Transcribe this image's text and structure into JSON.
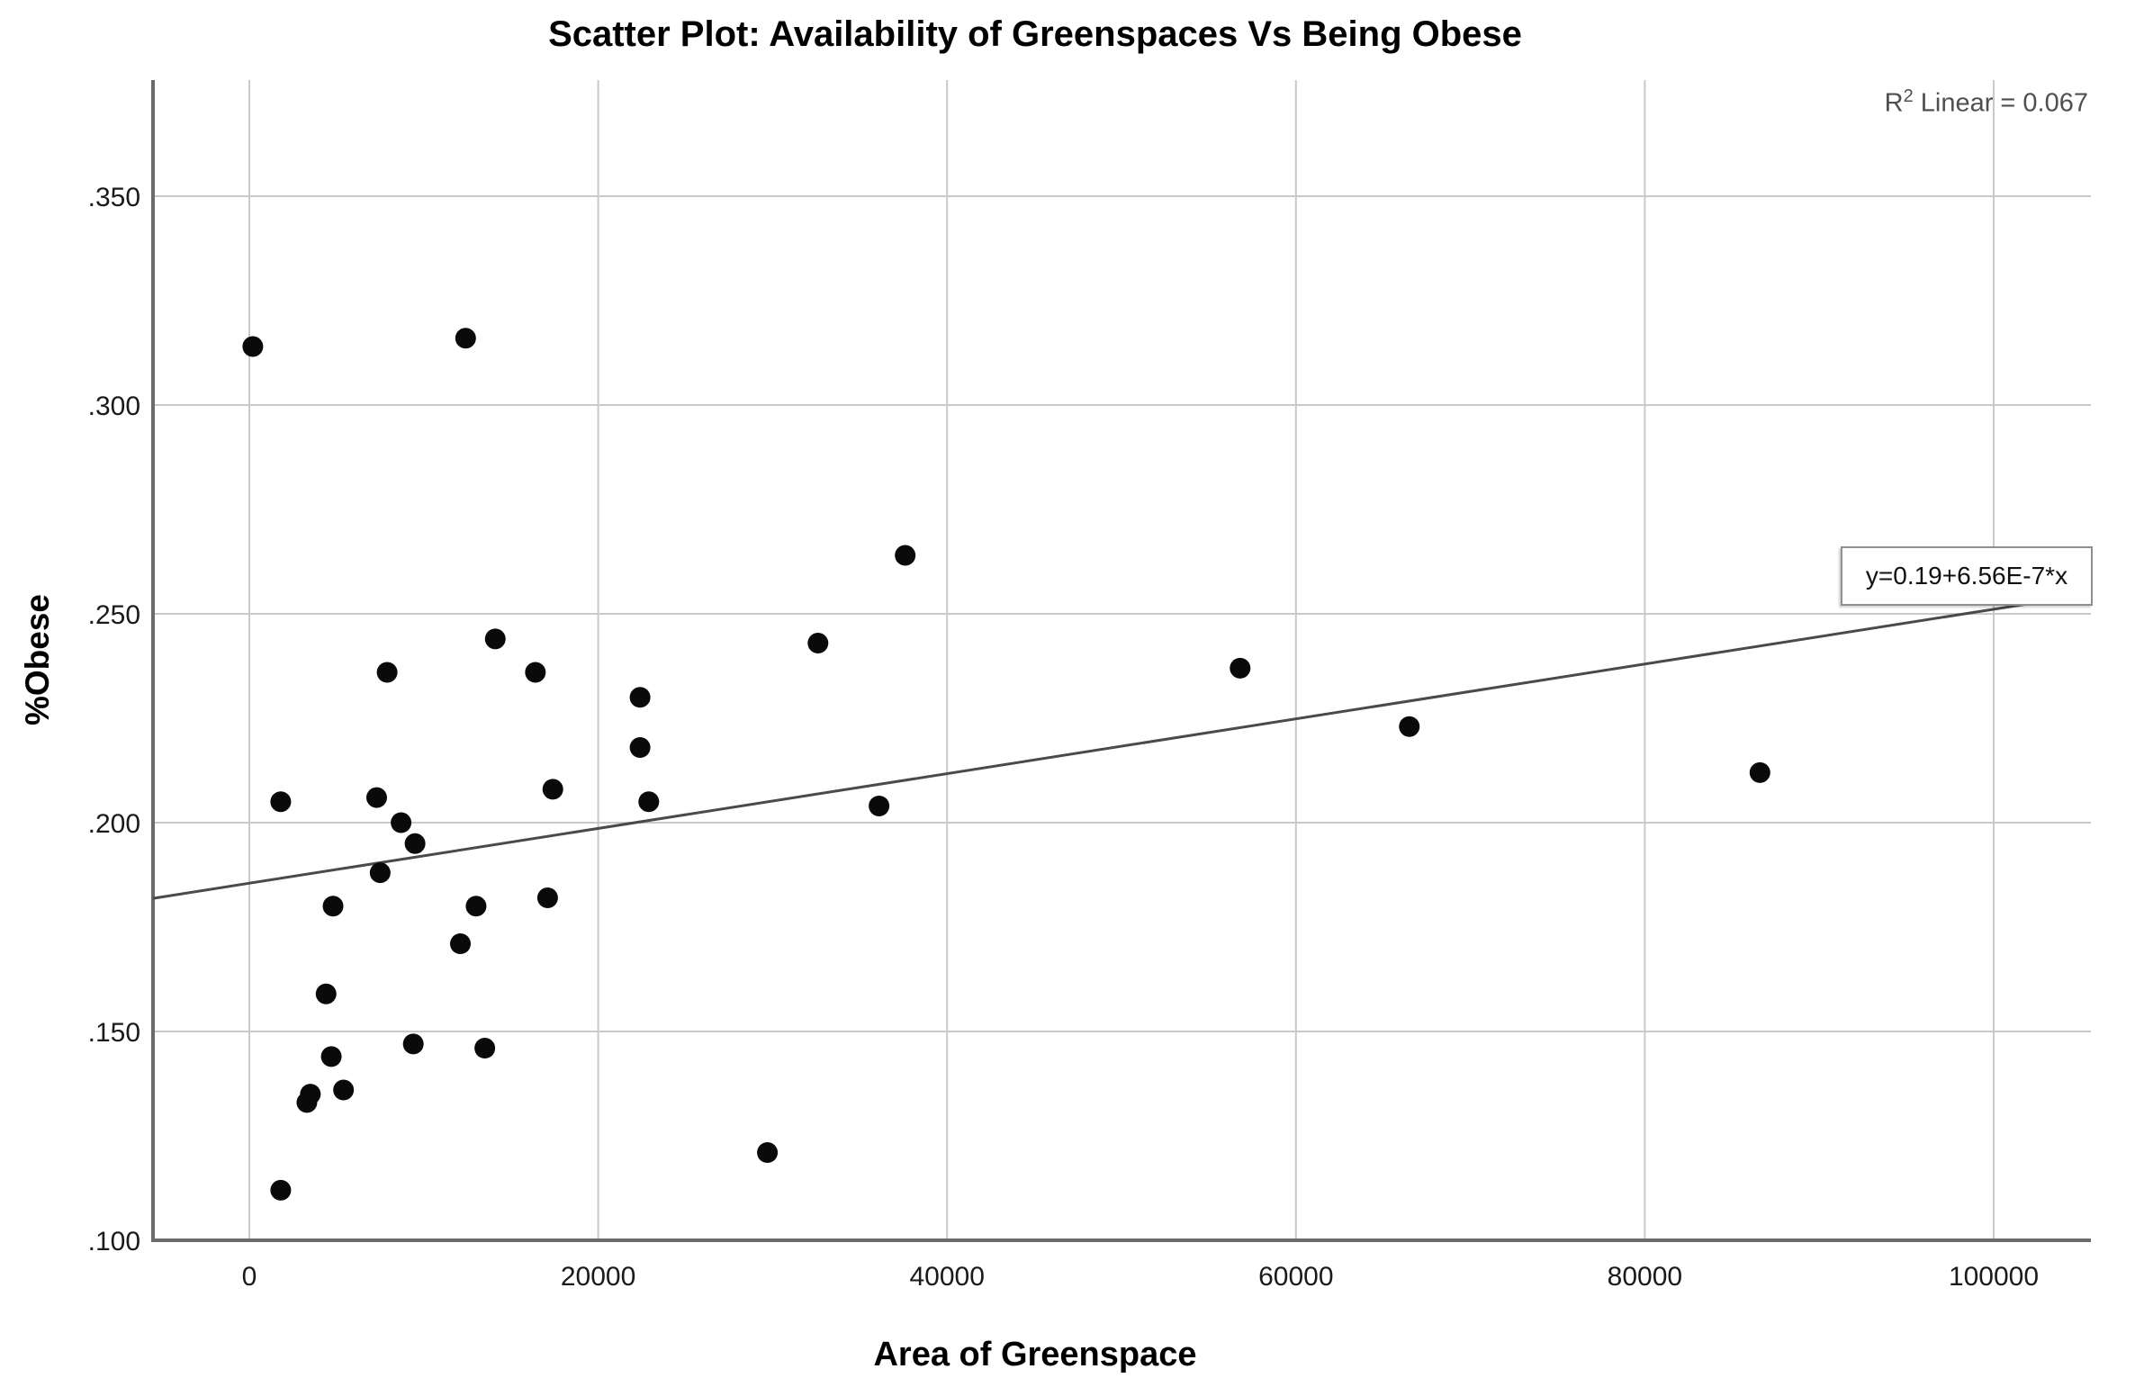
{
  "title": "Scatter Plot: Availability of Greenspaces Vs Being Obese",
  "annotations": {
    "r2_prefix": "R",
    "r2_sup": "2",
    "r2_suffix": " Linear = 0.067",
    "equation_label": "y=0.19+6.56E-7*x"
  },
  "chart_data": {
    "type": "scatter",
    "title": "Scatter Plot: Availability of Greenspaces Vs Being Obese",
    "xlabel": "Area of Greenspace",
    "ylabel": "%Obese",
    "r_squared": 0.067,
    "fit_line": {
      "slope": 6.56e-07,
      "intercept_label": "0.19",
      "intercept_drawn": 0.1855
    },
    "grid": true,
    "xlim": [
      -5522,
      105600
    ],
    "ylim": [
      0.1,
      0.3778
    ],
    "x_ticks": [
      {
        "value": 0,
        "label": "0"
      },
      {
        "value": 20000,
        "label": "20000"
      },
      {
        "value": 40000,
        "label": "40000"
      },
      {
        "value": 60000,
        "label": "60000"
      },
      {
        "value": 80000,
        "label": "80000"
      },
      {
        "value": 100000,
        "label": "100000"
      }
    ],
    "y_ticks": [
      {
        "value": 0.1,
        "label": ".100"
      },
      {
        "value": 0.15,
        "label": ".150"
      },
      {
        "value": 0.2,
        "label": ".200"
      },
      {
        "value": 0.25,
        "label": ".250"
      },
      {
        "value": 0.3,
        "label": ".300"
      },
      {
        "value": 0.35,
        "label": ".350"
      }
    ],
    "points": [
      [
        200,
        0.314
      ],
      [
        12400,
        0.316
      ],
      [
        14100,
        0.244
      ],
      [
        7900,
        0.236
      ],
      [
        16400,
        0.236
      ],
      [
        22400,
        0.23
      ],
      [
        22400,
        0.218
      ],
      [
        17400,
        0.208
      ],
      [
        22900,
        0.205
      ],
      [
        1800,
        0.205
      ],
      [
        7300,
        0.206
      ],
      [
        8700,
        0.2
      ],
      [
        9500,
        0.195
      ],
      [
        7500,
        0.188
      ],
      [
        4800,
        0.18
      ],
      [
        13000,
        0.18
      ],
      [
        17100,
        0.182
      ],
      [
        12100,
        0.171
      ],
      [
        4400,
        0.159
      ],
      [
        9400,
        0.147
      ],
      [
        13500,
        0.146
      ],
      [
        4700,
        0.144
      ],
      [
        5400,
        0.136
      ],
      [
        3500,
        0.135
      ],
      [
        3300,
        0.133
      ],
      [
        1800,
        0.112
      ],
      [
        29700,
        0.121
      ],
      [
        37600,
        0.264
      ],
      [
        32600,
        0.243
      ],
      [
        36100,
        0.204
      ],
      [
        56800,
        0.237
      ],
      [
        66500,
        0.223
      ],
      [
        86600,
        0.212
      ]
    ],
    "style": {
      "point_color": "#0a0a0a",
      "grid_color": "#c9c9c9",
      "axis_color": "#6b6b6b",
      "line_color": "#4a4a4a",
      "tick_text_color": "#1a1a1a"
    }
  }
}
